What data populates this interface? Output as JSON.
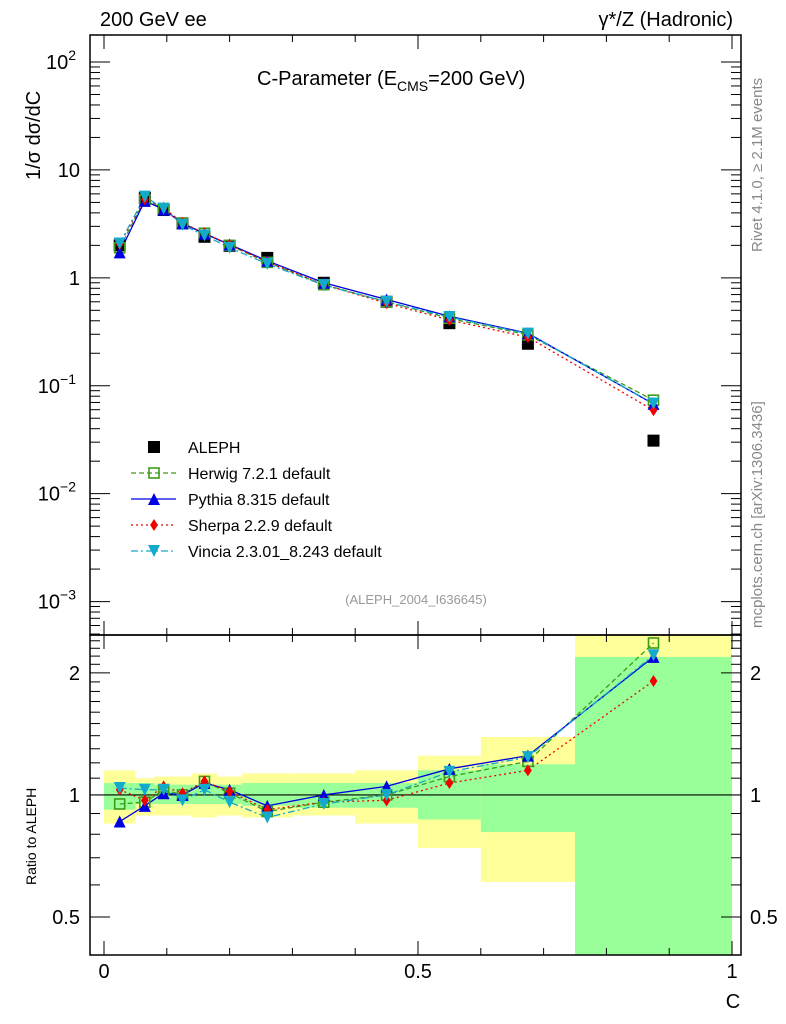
{
  "header": {
    "left": "200 GeV ee",
    "right": "γ*/Z (Hadronic)"
  },
  "side": {
    "top": "Rivet 4.1.0, ≥ 2.1M events",
    "bottom": "mcplots.cern.ch [arXiv:1306.3436]"
  },
  "chart_data": {
    "type": "line",
    "title_main": "C-Parameter (E",
    "title_sub": "CMS",
    "title_end": "=200 GeV)",
    "ylabel": "1/σ  dσ/dC",
    "ratio_ylabel": "Ratio to ALEPH",
    "xlabel": "C",
    "analysis": "(ALEPH_2004_I636645)",
    "xlim": [
      0,
      1
    ],
    "ylim": [
      0.00049,
      178
    ],
    "ratio_ylim": [
      0.403,
      2.48
    ],
    "yscale": "log",
    "xticks": [
      {
        "v": 0,
        "l": "0"
      },
      {
        "v": 0.5,
        "l": "0.5"
      },
      {
        "v": 1,
        "l": "1"
      }
    ],
    "yticks": [
      {
        "v": 100,
        "b": "10",
        "e": "2"
      },
      {
        "v": 10,
        "b": "10",
        "e": ""
      },
      {
        "v": 1,
        "b": "1",
        "e": ""
      },
      {
        "v": 0.1,
        "b": "10",
        "e": "−1"
      },
      {
        "v": 0.01,
        "b": "10",
        "e": "−2"
      },
      {
        "v": 0.001,
        "b": "10",
        "e": "−3"
      }
    ],
    "ratio_yticks": [
      {
        "v": 2,
        "l": "2"
      },
      {
        "v": 1,
        "l": "1"
      },
      {
        "v": 0.5,
        "l": "0.5"
      }
    ],
    "bin_edges": [
      0,
      0.05,
      0.08,
      0.11,
      0.14,
      0.18,
      0.22,
      0.3,
      0.4,
      0.5,
      0.6,
      0.75,
      1.0
    ],
    "x": [
      0.025,
      0.065,
      0.095,
      0.125,
      0.16,
      0.2,
      0.26,
      0.35,
      0.45,
      0.55,
      0.675,
      0.875
    ],
    "data": {
      "name": "ALEPH",
      "values": [
        2.0,
        5.5,
        4.25,
        3.2,
        2.4,
        1.98,
        1.53,
        0.9,
        0.6,
        0.38,
        0.245,
        0.031
      ]
    },
    "band_total": [
      [
        0.85,
        1.15
      ],
      [
        0.89,
        1.1
      ],
      [
        0.89,
        1.11
      ],
      [
        0.89,
        1.11
      ],
      [
        0.88,
        1.13
      ],
      [
        0.89,
        1.11
      ],
      [
        0.88,
        1.13
      ],
      [
        0.89,
        1.13
      ],
      [
        0.85,
        1.15
      ],
      [
        0.74,
        1.25
      ],
      [
        0.61,
        1.39
      ],
      [
        0.0,
        3.0
      ]
    ],
    "band_stat": [
      [
        0.92,
        1.07
      ],
      [
        0.95,
        1.07
      ],
      [
        0.95,
        1.06
      ],
      [
        0.95,
        1.06
      ],
      [
        0.95,
        1.06
      ],
      [
        0.95,
        1.06
      ],
      [
        0.94,
        1.07
      ],
      [
        0.93,
        1.07
      ],
      [
        0.93,
        1.07
      ],
      [
        0.87,
        1.15
      ],
      [
        0.81,
        1.19
      ],
      [
        0.0,
        2.19
      ]
    ],
    "series": [
      {
        "name": "Herwig 7.2.1 default",
        "color": "#3f9a1a",
        "dash": "5,3",
        "marker": "open-square",
        "ratio": [
          0.95,
          0.96,
          1.03,
          1.0,
          1.08,
          1.01,
          0.91,
          0.96,
          1.0,
          1.11,
          1.21,
          2.37
        ]
      },
      {
        "name": "Pythia 8.315 default",
        "color": "#0000e0",
        "dash": "",
        "marker": "triangle-up",
        "ratio": [
          0.86,
          0.94,
          1.01,
          1.0,
          1.07,
          1.03,
          0.94,
          1.0,
          1.05,
          1.16,
          1.25,
          2.19
        ]
      },
      {
        "name": "Sherpa 2.2.9 default",
        "color": "#f00000",
        "dash": "2,3",
        "marker": "diamond",
        "ratio": [
          1.03,
          0.97,
          1.05,
          1.01,
          1.08,
          1.02,
          0.92,
          0.96,
          0.97,
          1.07,
          1.15,
          1.91
        ]
      },
      {
        "name": "Vincia 2.3.01_8.243 default",
        "color": "#14aacb",
        "dash": "7,3,2,3",
        "marker": "triangle-down",
        "ratio": [
          1.04,
          1.03,
          1.03,
          0.97,
          1.03,
          0.96,
          0.88,
          0.95,
          1.0,
          1.14,
          1.24,
          2.21
        ]
      }
    ],
    "colors": {
      "band_total": "#ffff99",
      "band_stat": "#99ff99",
      "data": "#000000"
    }
  }
}
